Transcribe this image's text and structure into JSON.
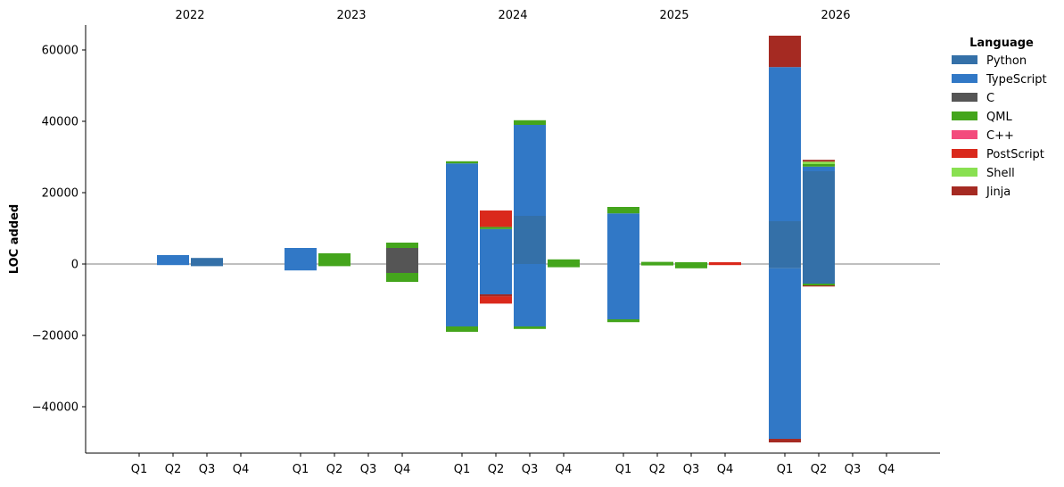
{
  "chart_data": {
    "type": "bar",
    "stacked": true,
    "diverging": true,
    "ylabel": "LOC added",
    "xlabel": "",
    "ylim": [
      -53000,
      67000
    ],
    "yticks": [
      -40000,
      -20000,
      0,
      20000,
      40000,
      60000
    ],
    "ytick_labels": [
      "−40000",
      "−20000",
      "0",
      "20000",
      "40000",
      "60000"
    ],
    "years": [
      "2022",
      "2023",
      "2024",
      "2025",
      "2026"
    ],
    "quarters": [
      "Q1",
      "Q2",
      "Q3",
      "Q4"
    ],
    "legend": {
      "title": "Language",
      "placement": "upper-right-outside",
      "entries": [
        {
          "name": "Python",
          "color": "#3470a8"
        },
        {
          "name": "TypeScript",
          "color": "#3178c6"
        },
        {
          "name": "C",
          "color": "#555555"
        },
        {
          "name": "QML",
          "color": "#44a51c"
        },
        {
          "name": "C++",
          "color": "#f34b7d"
        },
        {
          "name": "PostScript",
          "color": "#da291c"
        },
        {
          "name": "Shell",
          "color": "#89e051"
        },
        {
          "name": "Jinja",
          "color": "#a52a22"
        }
      ]
    },
    "bars": [
      {
        "year": "2022",
        "quarter": "Q2",
        "added": [
          {
            "lang": "TypeScript",
            "value": 2500
          }
        ],
        "removed": [
          {
            "lang": "TypeScript",
            "value": 300
          }
        ]
      },
      {
        "year": "2022",
        "quarter": "Q3",
        "added": [
          {
            "lang": "Python",
            "value": 1700
          }
        ],
        "removed": [
          {
            "lang": "Python",
            "value": 600
          }
        ]
      },
      {
        "year": "2023",
        "quarter": "Q1",
        "added": [
          {
            "lang": "TypeScript",
            "value": 4500
          }
        ],
        "removed": [
          {
            "lang": "TypeScript",
            "value": 1800
          }
        ]
      },
      {
        "year": "2023",
        "quarter": "Q2",
        "added": [
          {
            "lang": "QML",
            "value": 3000
          }
        ],
        "removed": [
          {
            "lang": "QML",
            "value": 600
          }
        ]
      },
      {
        "year": "2023",
        "quarter": "Q4",
        "added": [
          {
            "lang": "C",
            "value": 4500
          },
          {
            "lang": "QML",
            "value": 1500
          }
        ],
        "removed": [
          {
            "lang": "C",
            "value": 2500
          },
          {
            "lang": "QML",
            "value": 2500
          }
        ]
      },
      {
        "year": "2024",
        "quarter": "Q1",
        "added": [
          {
            "lang": "TypeScript",
            "value": 28200
          },
          {
            "lang": "QML",
            "value": 600
          }
        ],
        "removed": [
          {
            "lang": "TypeScript",
            "value": 17500
          },
          {
            "lang": "QML",
            "value": 1500
          }
        ]
      },
      {
        "year": "2024",
        "quarter": "Q2",
        "added": [
          {
            "lang": "TypeScript",
            "value": 9800
          },
          {
            "lang": "QML",
            "value": 600
          },
          {
            "lang": "PostScript",
            "value": 4600
          }
        ],
        "removed": [
          {
            "lang": "TypeScript",
            "value": 8500
          },
          {
            "lang": "Jinja",
            "value": 600
          },
          {
            "lang": "PostScript",
            "value": 2000
          }
        ]
      },
      {
        "year": "2024",
        "quarter": "Q3",
        "added": [
          {
            "lang": "Python",
            "value": 13500
          },
          {
            "lang": "TypeScript",
            "value": 25500
          },
          {
            "lang": "QML",
            "value": 1300
          }
        ],
        "removed": [
          {
            "lang": "TypeScript",
            "value": 17500
          },
          {
            "lang": "QML",
            "value": 700
          }
        ]
      },
      {
        "year": "2024",
        "quarter": "Q4",
        "added": [
          {
            "lang": "QML",
            "value": 1300
          }
        ],
        "removed": [
          {
            "lang": "QML",
            "value": 900
          }
        ]
      },
      {
        "year": "2025",
        "quarter": "Q1",
        "added": [
          {
            "lang": "TypeScript",
            "value": 14200
          },
          {
            "lang": "QML",
            "value": 1800
          }
        ],
        "removed": [
          {
            "lang": "TypeScript",
            "value": 15500
          },
          {
            "lang": "QML",
            "value": 800
          }
        ]
      },
      {
        "year": "2025",
        "quarter": "Q2",
        "added": [
          {
            "lang": "QML",
            "value": 600
          }
        ],
        "removed": [
          {
            "lang": "QML",
            "value": 400
          }
        ]
      },
      {
        "year": "2025",
        "quarter": "Q3",
        "added": [
          {
            "lang": "QML",
            "value": 500
          }
        ],
        "removed": [
          {
            "lang": "QML",
            "value": 1200
          }
        ]
      },
      {
        "year": "2025",
        "quarter": "Q4",
        "added": [
          {
            "lang": "PostScript",
            "value": 500
          }
        ],
        "removed": [
          {
            "lang": "PostScript",
            "value": 300
          }
        ]
      },
      {
        "year": "2026",
        "quarter": "Q1",
        "added": [
          {
            "lang": "Python",
            "value": 12000
          },
          {
            "lang": "TypeScript",
            "value": 43200
          },
          {
            "lang": "Jinja",
            "value": 8800
          }
        ],
        "removed": [
          {
            "lang": "Python",
            "value": 1200
          },
          {
            "lang": "TypeScript",
            "value": 47800
          },
          {
            "lang": "Jinja",
            "value": 1000
          }
        ]
      },
      {
        "year": "2026",
        "quarter": "Q2",
        "added": [
          {
            "lang": "Python",
            "value": 26000
          },
          {
            "lang": "TypeScript",
            "value": 1300
          },
          {
            "lang": "QML",
            "value": 700
          },
          {
            "lang": "Shell",
            "value": 700
          },
          {
            "lang": "Jinja",
            "value": 500
          }
        ],
        "removed": [
          {
            "lang": "Python",
            "value": 5500
          },
          {
            "lang": "QML",
            "value": 500
          },
          {
            "lang": "Jinja",
            "value": 300
          }
        ]
      }
    ]
  }
}
